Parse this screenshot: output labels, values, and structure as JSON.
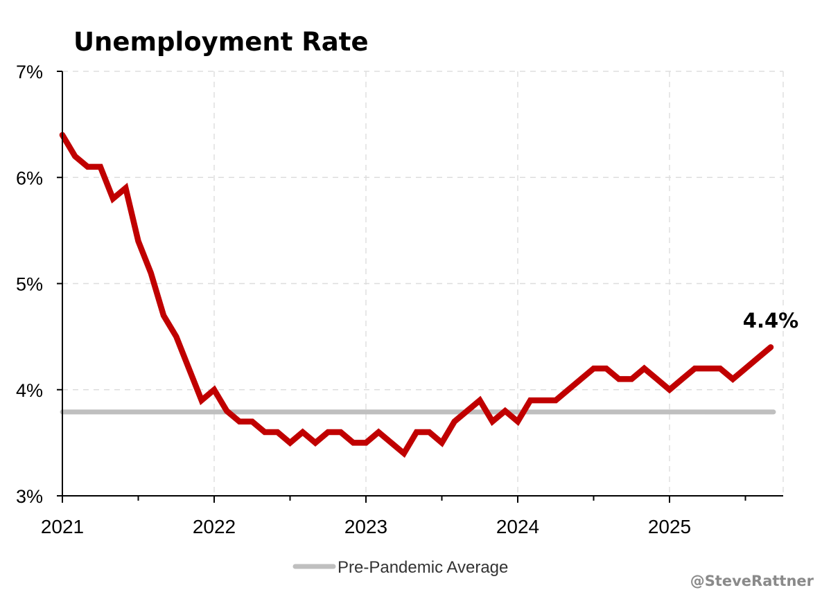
{
  "chart_data": {
    "type": "line",
    "title": "Unemployment Rate",
    "x_ticks": [
      "2021",
      "2022",
      "2023",
      "2024",
      "2025"
    ],
    "y_ticks": [
      "3%",
      "4%",
      "5%",
      "6%",
      "7%"
    ],
    "ylim": [
      3,
      7
    ],
    "xlim": [
      2021.0,
      2025.75
    ],
    "grid": true,
    "legend_placement": "bottom-center",
    "series": [
      {
        "role": "unemployment-rate",
        "color": "#c00000",
        "x": [
          2021.0,
          2021.0833,
          2021.1667,
          2021.25,
          2021.3333,
          2021.4167,
          2021.5,
          2021.5833,
          2021.6667,
          2021.75,
          2021.8333,
          2021.9167,
          2022.0,
          2022.0833,
          2022.1667,
          2022.25,
          2022.3333,
          2022.4167,
          2022.5,
          2022.5833,
          2022.6667,
          2022.75,
          2022.8333,
          2022.9167,
          2023.0,
          2023.0833,
          2023.1667,
          2023.25,
          2023.3333,
          2023.4167,
          2023.5,
          2023.5833,
          2023.6667,
          2023.75,
          2023.8333,
          2023.9167,
          2024.0,
          2024.0833,
          2024.1667,
          2024.25,
          2024.3333,
          2024.4167,
          2024.5,
          2024.5833,
          2024.6667,
          2024.75,
          2024.8333,
          2024.9167,
          2025.0,
          2025.0833,
          2025.1667,
          2025.25,
          2025.3333,
          2025.4167,
          2025.5,
          2025.5833,
          2025.6667
        ],
        "values": [
          6.4,
          6.2,
          6.1,
          6.1,
          5.8,
          5.9,
          5.4,
          5.1,
          4.7,
          4.5,
          4.2,
          3.9,
          4.0,
          3.8,
          3.7,
          3.7,
          3.6,
          3.6,
          3.5,
          3.6,
          3.5,
          3.6,
          3.6,
          3.5,
          3.5,
          3.6,
          3.5,
          3.4,
          3.6,
          3.6,
          3.5,
          3.7,
          3.8,
          3.9,
          3.7,
          3.8,
          3.7,
          3.9,
          3.9,
          3.9,
          4.0,
          4.1,
          4.2,
          4.2,
          4.1,
          4.1,
          4.2,
          4.1,
          4.0,
          4.1,
          4.2,
          4.2,
          4.2,
          4.1,
          4.2,
          4.3,
          4.4
        ]
      },
      {
        "name": "Pre-Pandemic Average",
        "role": "reference-line",
        "color": "#bfbfbf",
        "value": 3.79
      }
    ],
    "end_label": "4.4%"
  },
  "credit": "@SteveRattner"
}
